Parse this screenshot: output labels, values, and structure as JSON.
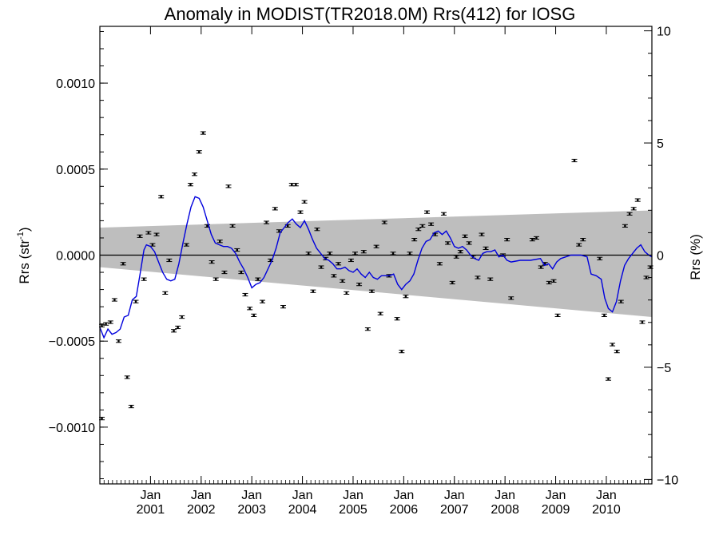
{
  "chart_data": {
    "type": "scatter",
    "title": "Anomaly in MODIST(TR2018.0M) Rrs(412) for IOSG",
    "ylabel_base": "Rrs (str",
    "ylabel_sup": "-1",
    "ylabel_end": ")",
    "y2label": "Rrs (%)",
    "xlim": [
      2000.0,
      2010.9
    ],
    "ylim": [
      -0.00133,
      0.00133
    ],
    "y2lim": [
      -10.2,
      10.2
    ],
    "yticks": [
      {
        "value": 0.001,
        "label": "0.0010"
      },
      {
        "value": 0.0005,
        "label": "0.0005"
      },
      {
        "value": 0.0,
        "label": "0.0000"
      },
      {
        "value": -0.0005,
        "label": "−0.0005"
      },
      {
        "value": -0.001,
        "label": "−0.0010"
      }
    ],
    "y2ticks": [
      {
        "value": 10,
        "label": "10"
      },
      {
        "value": 5,
        "label": "5"
      },
      {
        "value": 0,
        "label": "0"
      },
      {
        "value": -5,
        "label": "−5"
      },
      {
        "value": -10,
        "label": "−10"
      }
    ],
    "xticks": [
      {
        "value": 2001.0,
        "month": "Jan",
        "year": "2001"
      },
      {
        "value": 2002.0,
        "month": "Jan",
        "year": "2002"
      },
      {
        "value": 2003.0,
        "month": "Jan",
        "year": "2003"
      },
      {
        "value": 2004.0,
        "month": "Jan",
        "year": "2004"
      },
      {
        "value": 2005.0,
        "month": "Jan",
        "year": "2005"
      },
      {
        "value": 2006.0,
        "month": "Jan",
        "year": "2006"
      },
      {
        "value": 2007.0,
        "month": "Jan",
        "year": "2007"
      },
      {
        "value": 2008.0,
        "month": "Jan",
        "year": "2008"
      },
      {
        "value": 2009.0,
        "month": "Jan",
        "year": "2009"
      },
      {
        "value": 2010.0,
        "month": "Jan",
        "year": "2010"
      }
    ],
    "band": {
      "upper": [
        [
          2000.0,
          0.00016
        ],
        [
          2010.9,
          0.00026
        ]
      ],
      "lower": [
        [
          2000.0,
          -7e-05
        ],
        [
          2010.9,
          -0.00036
        ]
      ]
    },
    "smoothed_series": [
      [
        2000.0,
        -0.00042
      ],
      [
        2000.08,
        -0.00048
      ],
      [
        2000.16,
        -0.00043
      ],
      [
        2000.24,
        -0.00046
      ],
      [
        2000.32,
        -0.00045
      ],
      [
        2000.4,
        -0.00043
      ],
      [
        2000.48,
        -0.00036
      ],
      [
        2000.56,
        -0.00035
      ],
      [
        2000.64,
        -0.00026
      ],
      [
        2000.72,
        -0.00024
      ],
      [
        2000.8,
        -0.0001
      ],
      [
        2000.87,
        3e-05
      ],
      [
        2000.92,
        6e-05
      ],
      [
        2001.0,
        5e-05
      ],
      [
        2001.08,
        2e-05
      ],
      [
        2001.16,
        -4e-05
      ],
      [
        2001.24,
        -0.0001
      ],
      [
        2001.32,
        -0.00014
      ],
      [
        2001.4,
        -0.00015
      ],
      [
        2001.48,
        -0.00014
      ],
      [
        2001.56,
        -5e-05
      ],
      [
        2001.64,
        7e-05
      ],
      [
        2001.72,
        0.00018
      ],
      [
        2001.8,
        0.00028
      ],
      [
        2001.88,
        0.00034
      ],
      [
        2001.96,
        0.00033
      ],
      [
        2002.04,
        0.00028
      ],
      [
        2002.12,
        0.0002
      ],
      [
        2002.2,
        0.00012
      ],
      [
        2002.28,
        7e-05
      ],
      [
        2002.36,
        6e-05
      ],
      [
        2002.44,
        5e-05
      ],
      [
        2002.52,
        5e-05
      ],
      [
        2002.6,
        4e-05
      ],
      [
        2002.68,
        1e-05
      ],
      [
        2002.76,
        -4e-05
      ],
      [
        2002.84,
        -8e-05
      ],
      [
        2002.92,
        -0.00013
      ],
      [
        2003.0,
        -0.00019
      ],
      [
        2003.08,
        -0.00017
      ],
      [
        2003.16,
        -0.00016
      ],
      [
        2003.24,
        -0.00013
      ],
      [
        2003.32,
        -8e-05
      ],
      [
        2003.4,
        -3e-05
      ],
      [
        2003.48,
        4e-05
      ],
      [
        2003.56,
        0.00013
      ],
      [
        2003.64,
        0.00016
      ],
      [
        2003.72,
        0.00019
      ],
      [
        2003.8,
        0.00021
      ],
      [
        2003.88,
        0.00018
      ],
      [
        2003.96,
        0.00016
      ],
      [
        2004.04,
        0.0002
      ],
      [
        2004.12,
        0.00015
      ],
      [
        2004.2,
        9e-05
      ],
      [
        2004.28,
        4e-05
      ],
      [
        2004.36,
        1e-05
      ],
      [
        2004.44,
        -2e-05
      ],
      [
        2004.52,
        -3e-05
      ],
      [
        2004.6,
        -5e-05
      ],
      [
        2004.68,
        -8e-05
      ],
      [
        2004.76,
        -8e-05
      ],
      [
        2004.84,
        -7e-05
      ],
      [
        2004.92,
        -9e-05
      ],
      [
        2005.0,
        -0.0001
      ],
      [
        2005.08,
        -8e-05
      ],
      [
        2005.16,
        -0.00011
      ],
      [
        2005.24,
        -0.00013
      ],
      [
        2005.32,
        -0.0001
      ],
      [
        2005.4,
        -0.00013
      ],
      [
        2005.48,
        -0.00014
      ],
      [
        2005.56,
        -0.00012
      ],
      [
        2005.64,
        -0.00012
      ],
      [
        2005.72,
        -0.00012
      ],
      [
        2005.8,
        -0.00011
      ],
      [
        2005.88,
        -0.00017
      ],
      [
        2005.96,
        -0.0002
      ],
      [
        2006.04,
        -0.00017
      ],
      [
        2006.12,
        -0.00015
      ],
      [
        2006.2,
        -0.00011
      ],
      [
        2006.28,
        -3e-05
      ],
      [
        2006.36,
        4e-05
      ],
      [
        2006.44,
        8e-05
      ],
      [
        2006.52,
        9e-05
      ],
      [
        2006.6,
        0.00013
      ],
      [
        2006.68,
        0.00014
      ],
      [
        2006.76,
        0.00012
      ],
      [
        2006.84,
        0.00014
      ],
      [
        2006.92,
        0.0001
      ],
      [
        2007.0,
        5e-05
      ],
      [
        2007.08,
        4e-05
      ],
      [
        2007.16,
        5e-05
      ],
      [
        2007.24,
        3e-05
      ],
      [
        2007.32,
        0.0
      ],
      [
        2007.4,
        -2e-05
      ],
      [
        2007.48,
        -3e-05
      ],
      [
        2007.56,
        1e-05
      ],
      [
        2007.64,
        2e-05
      ],
      [
        2007.72,
        2e-05
      ],
      [
        2007.8,
        3e-05
      ],
      [
        2007.88,
        -1e-05
      ],
      [
        2007.96,
        0.0
      ],
      [
        2008.04,
        -3e-05
      ],
      [
        2008.12,
        -4e-05
      ],
      [
        2008.3,
        -3e-05
      ],
      [
        2008.5,
        -3e-05
      ],
      [
        2008.7,
        -2e-05
      ],
      [
        2008.78,
        -6e-05
      ],
      [
        2008.86,
        -5e-05
      ],
      [
        2008.94,
        -8e-05
      ],
      [
        2009.02,
        -4e-05
      ],
      [
        2009.1,
        -2e-05
      ],
      [
        2009.2,
        -1e-05
      ],
      [
        2009.3,
        0.0
      ],
      [
        2009.5,
        0.0
      ],
      [
        2009.62,
        -1e-05
      ],
      [
        2009.7,
        -0.00011
      ],
      [
        2009.8,
        -0.00012
      ],
      [
        2009.9,
        -0.00014
      ],
      [
        2009.97,
        -0.00025
      ],
      [
        2010.04,
        -0.00031
      ],
      [
        2010.12,
        -0.00033
      ],
      [
        2010.2,
        -0.00027
      ],
      [
        2010.28,
        -0.00015
      ],
      [
        2010.36,
        -6e-05
      ],
      [
        2010.44,
        -2e-05
      ],
      [
        2010.52,
        1e-05
      ],
      [
        2010.6,
        4e-05
      ],
      [
        2010.68,
        6e-05
      ],
      [
        2010.76,
        2e-05
      ],
      [
        2010.84,
        0.0
      ],
      [
        2010.9,
        -1e-05
      ]
    ],
    "monthly_points": [
      [
        2000.04,
        -0.00095
      ],
      [
        2000.04,
        -0.00041
      ],
      [
        2000.12,
        -0.0004
      ],
      [
        2000.21,
        -0.00039
      ],
      [
        2000.29,
        -0.00026
      ],
      [
        2000.37,
        -0.0005
      ],
      [
        2000.46,
        -5e-05
      ],
      [
        2000.54,
        -0.00071
      ],
      [
        2000.62,
        -0.00088
      ],
      [
        2000.71,
        -0.00027
      ],
      [
        2000.79,
        0.00011
      ],
      [
        2000.87,
        -0.00014
      ],
      [
        2000.96,
        0.00013
      ],
      [
        2001.04,
        6e-05
      ],
      [
        2001.12,
        0.00012
      ],
      [
        2001.21,
        0.00034
      ],
      [
        2001.29,
        -0.00022
      ],
      [
        2001.37,
        -3e-05
      ],
      [
        2001.46,
        -0.00044
      ],
      [
        2001.54,
        -0.00042
      ],
      [
        2001.62,
        -0.00036
      ],
      [
        2001.71,
        6e-05
      ],
      [
        2001.79,
        0.00041
      ],
      [
        2001.87,
        0.00047
      ],
      [
        2001.96,
        0.0006
      ],
      [
        2002.04,
        0.00071
      ],
      [
        2002.12,
        0.00017
      ],
      [
        2002.21,
        -4e-05
      ],
      [
        2002.29,
        -0.00014
      ],
      [
        2002.37,
        8e-05
      ],
      [
        2002.46,
        -0.0001
      ],
      [
        2002.54,
        0.0004
      ],
      [
        2002.62,
        0.00017
      ],
      [
        2002.71,
        3e-05
      ],
      [
        2002.79,
        -0.0001
      ],
      [
        2002.87,
        -0.00023
      ],
      [
        2002.96,
        -0.00031
      ],
      [
        2003.04,
        -0.00035
      ],
      [
        2003.12,
        -0.00014
      ],
      [
        2003.21,
        -0.00027
      ],
      [
        2003.29,
        0.00019
      ],
      [
        2003.37,
        -3e-05
      ],
      [
        2003.46,
        0.00027
      ],
      [
        2003.54,
        0.00014
      ],
      [
        2003.62,
        -0.0003
      ],
      [
        2003.71,
        0.00017
      ],
      [
        2003.79,
        0.00041
      ],
      [
        2003.87,
        0.00041
      ],
      [
        2003.96,
        0.00025
      ],
      [
        2004.04,
        0.00031
      ],
      [
        2004.12,
        1e-05
      ],
      [
        2004.21,
        -0.00021
      ],
      [
        2004.29,
        0.00015
      ],
      [
        2004.37,
        -7e-05
      ],
      [
        2004.46,
        -2e-05
      ],
      [
        2004.54,
        1e-05
      ],
      [
        2004.62,
        -0.00012
      ],
      [
        2004.71,
        -5e-05
      ],
      [
        2004.79,
        -0.00015
      ],
      [
        2004.87,
        -0.00022
      ],
      [
        2004.96,
        -3e-05
      ],
      [
        2005.04,
        1e-05
      ],
      [
        2005.12,
        -0.00017
      ],
      [
        2005.21,
        2e-05
      ],
      [
        2005.29,
        -0.00043
      ],
      [
        2005.37,
        -0.00021
      ],
      [
        2005.46,
        5e-05
      ],
      [
        2005.54,
        -0.00034
      ],
      [
        2005.62,
        0.00019
      ],
      [
        2005.71,
        -0.00012
      ],
      [
        2005.79,
        1e-05
      ],
      [
        2005.87,
        -0.00037
      ],
      [
        2005.96,
        -0.00056
      ],
      [
        2006.04,
        -0.00024
      ],
      [
        2006.12,
        1e-05
      ],
      [
        2006.21,
        9e-05
      ],
      [
        2006.29,
        0.00015
      ],
      [
        2006.37,
        0.00017
      ],
      [
        2006.46,
        0.00025
      ],
      [
        2006.54,
        0.00018
      ],
      [
        2006.62,
        0.00012
      ],
      [
        2006.71,
        -5e-05
      ],
      [
        2006.79,
        0.00024
      ],
      [
        2006.87,
        7e-05
      ],
      [
        2006.96,
        -0.00016
      ],
      [
        2007.04,
        -1e-05
      ],
      [
        2007.12,
        2e-05
      ],
      [
        2007.21,
        0.00011
      ],
      [
        2007.29,
        7e-05
      ],
      [
        2007.37,
        -1e-05
      ],
      [
        2007.46,
        -0.00013
      ],
      [
        2007.54,
        0.00012
      ],
      [
        2007.62,
        4e-05
      ],
      [
        2007.71,
        -0.00014
      ],
      [
        2007.96,
        0.0
      ],
      [
        2008.04,
        9e-05
      ],
      [
        2008.12,
        -0.00025
      ],
      [
        2008.54,
        9e-05
      ],
      [
        2008.62,
        0.0001
      ],
      [
        2008.71,
        -7e-05
      ],
      [
        2008.79,
        -5e-05
      ],
      [
        2008.87,
        -0.00016
      ],
      [
        2008.96,
        -0.00015
      ],
      [
        2009.04,
        -0.00035
      ],
      [
        2009.37,
        0.00055
      ],
      [
        2009.46,
        6e-05
      ],
      [
        2009.54,
        9e-05
      ],
      [
        2009.87,
        -2e-05
      ],
      [
        2009.96,
        -0.00035
      ],
      [
        2010.04,
        -0.00072
      ],
      [
        2010.12,
        -0.00052
      ],
      [
        2010.21,
        -0.00056
      ],
      [
        2010.29,
        -0.00027
      ],
      [
        2010.37,
        0.00017
      ],
      [
        2010.46,
        0.00024
      ],
      [
        2010.54,
        0.00027
      ],
      [
        2010.62,
        0.00032
      ],
      [
        2010.71,
        -0.00039
      ],
      [
        2010.79,
        -0.00013
      ],
      [
        2010.87,
        -7e-05
      ]
    ],
    "grid": false,
    "legend": "none",
    "colors": {
      "band": "#bebebe",
      "smoothed": "#0000dd",
      "points": "#000000",
      "zero_line": "#000000"
    }
  }
}
